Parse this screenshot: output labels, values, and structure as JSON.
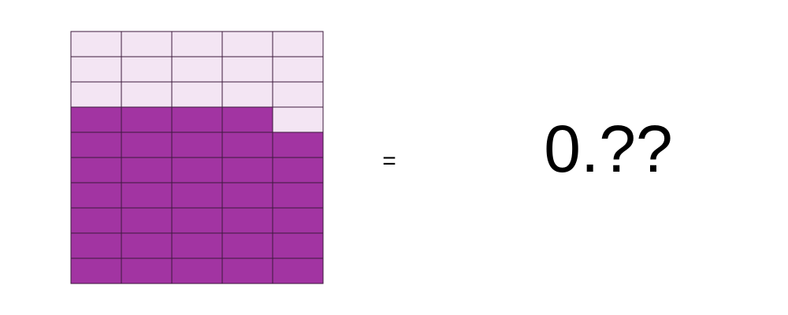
{
  "grid": {
    "rows": 10,
    "columns": 5,
    "shaded": 34,
    "shaded_color": "#a234a2",
    "empty_color": "#f3e5f3",
    "line_color": "#3c1a3c"
  },
  "equals": "=",
  "answer": "0.??"
}
